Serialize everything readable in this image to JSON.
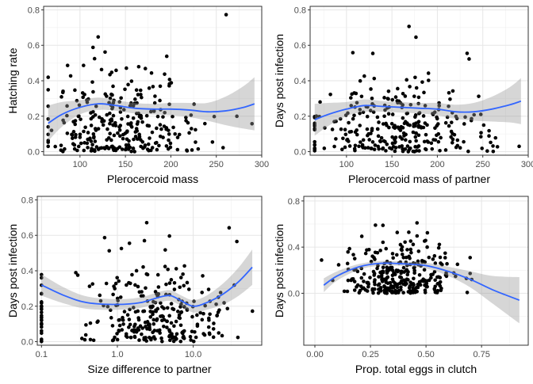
{
  "chart_data": [
    {
      "type": "scatter",
      "panel": "top-left",
      "xlabel": "Plerocercoid mass",
      "ylabel": "Hatching rate",
      "x_scale": "linear",
      "xlim": [
        60,
        300
      ],
      "ylim": [
        -0.02,
        0.82
      ],
      "x_ticks": [
        100,
        150,
        200,
        250,
        300
      ],
      "x_tick_labels": [
        "100",
        "150",
        "200",
        "250",
        "300"
      ],
      "y_ticks": [
        0.0,
        0.2,
        0.4,
        0.6,
        0.8
      ],
      "y_tick_labels": [
        "0.0",
        "0.2",
        "0.4",
        "0.6",
        "0.8"
      ],
      "grid": true,
      "seed": 11,
      "point_model": {
        "x_center": 150,
        "x_spread": 45,
        "x_min": 65,
        "x_max": 290,
        "y_mean": 0.24,
        "y_spread": 0.18,
        "n": 300
      },
      "smooth": {
        "x": [
          65,
          80,
          100,
          120,
          140,
          160,
          180,
          200,
          220,
          240,
          260,
          280,
          292
        ],
        "y": [
          0.16,
          0.21,
          0.25,
          0.27,
          0.26,
          0.245,
          0.24,
          0.24,
          0.235,
          0.225,
          0.23,
          0.25,
          0.27
        ],
        "ci": [
          0.1,
          0.07,
          0.04,
          0.035,
          0.03,
          0.03,
          0.03,
          0.035,
          0.04,
          0.05,
          0.08,
          0.12,
          0.15
        ]
      }
    },
    {
      "type": "scatter",
      "panel": "top-right",
      "xlabel": "Plerocercoid mass of partner",
      "ylabel": "Days post infection",
      "x_scale": "linear",
      "xlim": [
        60,
        300
      ],
      "ylim": [
        -0.02,
        0.82
      ],
      "x_ticks": [
        100,
        150,
        200,
        250,
        300
      ],
      "x_tick_labels": [
        "100",
        "150",
        "200",
        "250",
        "300"
      ],
      "y_ticks": [
        0.0,
        0.2,
        0.4,
        0.6,
        0.8
      ],
      "y_tick_labels": [
        "0.0",
        "0.2",
        "0.4",
        "0.6",
        "0.8"
      ],
      "grid": true,
      "seed": 23,
      "point_model": {
        "x_center": 155,
        "x_spread": 45,
        "x_min": 65,
        "x_max": 290,
        "y_mean": 0.24,
        "y_spread": 0.18,
        "n": 300
      },
      "smooth": {
        "x": [
          65,
          80,
          100,
          120,
          140,
          160,
          180,
          200,
          220,
          240,
          260,
          280,
          292
        ],
        "y": [
          0.18,
          0.21,
          0.24,
          0.26,
          0.255,
          0.25,
          0.245,
          0.24,
          0.225,
          0.225,
          0.24,
          0.265,
          0.285
        ],
        "ci": [
          0.09,
          0.065,
          0.04,
          0.035,
          0.03,
          0.03,
          0.03,
          0.035,
          0.04,
          0.05,
          0.07,
          0.1,
          0.13
        ]
      }
    },
    {
      "type": "scatter",
      "panel": "bottom-left",
      "xlabel": "Size difference to partner",
      "ylabel": "Days post infection",
      "x_scale": "log",
      "xlim": [
        0.088,
        80
      ],
      "ylim": [
        -0.02,
        0.82
      ],
      "x_ticks": [
        0.1,
        1.0,
        10.0
      ],
      "x_tick_labels": [
        "0.1",
        "1.0",
        "10.0"
      ],
      "y_ticks": [
        0.0,
        0.2,
        0.4,
        0.6,
        0.8
      ],
      "y_tick_labels": [
        "0.0",
        "0.2",
        "0.4",
        "0.6",
        "0.8"
      ],
      "grid": true,
      "seed": 37,
      "point_model": {
        "x_log_center": 0.55,
        "x_log_spread": 0.45,
        "x_min": 0.1,
        "x_max": 65,
        "y_mean": 0.24,
        "y_spread": 0.18,
        "n": 300
      },
      "smooth": {
        "x": [
          0.1,
          0.2,
          0.4,
          1.0,
          2.0,
          3.5,
          5.0,
          7.0,
          10.0,
          15.0,
          25.0,
          40.0,
          60.0
        ],
        "y": [
          0.32,
          0.26,
          0.22,
          0.21,
          0.22,
          0.25,
          0.26,
          0.23,
          0.2,
          0.22,
          0.27,
          0.34,
          0.42
        ],
        "ci": [
          0.06,
          0.045,
          0.035,
          0.03,
          0.03,
          0.03,
          0.03,
          0.03,
          0.035,
          0.04,
          0.06,
          0.08,
          0.1
        ]
      }
    },
    {
      "type": "scatter",
      "panel": "bottom-right",
      "xlabel": "Prop. total eggs in clutch",
      "ylabel": "Days post infection",
      "x_scale": "linear",
      "xlim": [
        -0.05,
        0.96
      ],
      "ylim": [
        -0.45,
        0.84
      ],
      "x_ticks": [
        0.0,
        0.25,
        0.5,
        0.75
      ],
      "x_tick_labels": [
        "0.00",
        "0.25",
        "0.50",
        "0.75"
      ],
      "y_ticks": [
        0.0,
        0.4,
        0.8
      ],
      "y_tick_labels": [
        "0.0",
        "0.4",
        "0.8"
      ],
      "grid": true,
      "seed": 53,
      "point_model": {
        "x_center": 0.38,
        "x_spread": 0.13,
        "x_min": 0.03,
        "x_max": 0.92,
        "y_mean": 0.24,
        "y_spread": 0.18,
        "n": 300
      },
      "smooth": {
        "x": [
          0.04,
          0.1,
          0.2,
          0.3,
          0.4,
          0.5,
          0.6,
          0.7,
          0.8,
          0.92
        ],
        "y": [
          0.07,
          0.15,
          0.23,
          0.26,
          0.255,
          0.24,
          0.19,
          0.12,
          0.03,
          -0.06
        ],
        "ci": [
          0.06,
          0.04,
          0.025,
          0.02,
          0.02,
          0.025,
          0.04,
          0.07,
          0.12,
          0.2
        ]
      }
    }
  ]
}
